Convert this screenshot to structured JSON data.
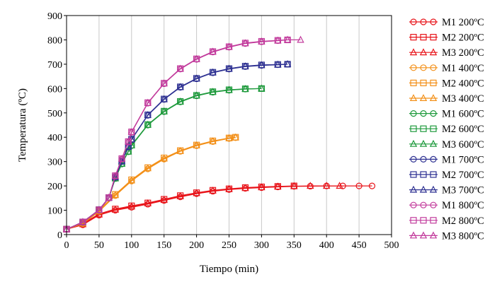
{
  "chart_data": {
    "type": "line",
    "title": "",
    "xlabel": "Tiempo (min)",
    "ylabel": "Temperatura (ºC)",
    "xlim": [
      0,
      500
    ],
    "ylim": [
      0,
      900
    ],
    "xticks": [
      0,
      50,
      100,
      150,
      200,
      250,
      300,
      350,
      400,
      450,
      500
    ],
    "yticks": [
      0,
      100,
      200,
      300,
      400,
      500,
      600,
      700,
      800,
      900
    ],
    "grid": "vertical",
    "legend_position": "right",
    "series": [
      {
        "name": "M1 200ºC",
        "color": "#e8141a",
        "marker": "circle",
        "x": [
          0,
          25,
          50,
          75,
          100,
          125,
          150,
          175,
          200,
          225,
          250,
          275,
          300,
          325,
          350,
          375,
          400,
          425,
          450,
          470
        ],
        "y": [
          22,
          40,
          80,
          100,
          112,
          125,
          140,
          155,
          168,
          178,
          185,
          190,
          193,
          196,
          198,
          199,
          200,
          200,
          200,
          200
        ]
      },
      {
        "name": "M2 200ºC",
        "color": "#e8141a",
        "marker": "square",
        "x": [
          0,
          25,
          50,
          75,
          100,
          125,
          150,
          175,
          200,
          225,
          250,
          275,
          300,
          325,
          350
        ],
        "y": [
          22,
          45,
          85,
          105,
          118,
          130,
          145,
          160,
          172,
          182,
          188,
          193,
          196,
          198,
          200
        ]
      },
      {
        "name": "M3 200ºC",
        "color": "#e8141a",
        "marker": "triangle",
        "x": [
          0,
          25,
          50,
          75,
          100,
          125,
          150,
          175,
          200,
          225,
          250,
          275,
          300,
          325,
          350,
          375,
          400,
          420
        ],
        "y": [
          22,
          42,
          82,
          102,
          115,
          128,
          142,
          157,
          170,
          180,
          187,
          191,
          194,
          197,
          199,
          200,
          200,
          200
        ]
      },
      {
        "name": "M1 400ºC",
        "color": "#f39019",
        "marker": "circle",
        "x": [
          0,
          25,
          50,
          75,
          100,
          125,
          150,
          175,
          200,
          225,
          250,
          260
        ],
        "y": [
          22,
          45,
          95,
          160,
          220,
          270,
          310,
          342,
          365,
          382,
          395,
          398
        ]
      },
      {
        "name": "M2 400ºC",
        "color": "#f39019",
        "marker": "square",
        "x": [
          0,
          25,
          50,
          75,
          100,
          125,
          150,
          175,
          200,
          225,
          250,
          260
        ],
        "y": [
          22,
          48,
          100,
          165,
          225,
          275,
          315,
          345,
          368,
          385,
          397,
          400
        ]
      },
      {
        "name": "M3 400ºC",
        "color": "#f39019",
        "marker": "triangle",
        "x": [
          0,
          25,
          50,
          75,
          100,
          125,
          150,
          175,
          200,
          225,
          250,
          260
        ],
        "y": [
          22,
          46,
          98,
          162,
          222,
          272,
          312,
          343,
          366,
          383,
          396,
          399
        ]
      },
      {
        "name": "M1 600ºC",
        "color": "#1e9a3c",
        "marker": "circle",
        "x": [
          0,
          25,
          50,
          65,
          75,
          85,
          95,
          100,
          125,
          150,
          175,
          200,
          225,
          250,
          275,
          300
        ],
        "y": [
          22,
          50,
          100,
          150,
          230,
          290,
          340,
          365,
          450,
          505,
          545,
          570,
          585,
          593,
          598,
          600
        ]
      },
      {
        "name": "M2 600ºC",
        "color": "#1e9a3c",
        "marker": "square",
        "x": [
          0,
          25,
          50,
          65,
          75,
          85,
          95,
          100,
          125,
          150,
          175,
          200,
          225,
          250,
          275,
          300
        ],
        "y": [
          22,
          52,
          102,
          152,
          232,
          292,
          342,
          368,
          452,
          507,
          547,
          572,
          587,
          595,
          599,
          600
        ]
      },
      {
        "name": "M3 600ºC",
        "color": "#1e9a3c",
        "marker": "triangle",
        "x": [
          0,
          25,
          50,
          65,
          75,
          85,
          95,
          100,
          125,
          150,
          175,
          200,
          225,
          250,
          275,
          300
        ],
        "y": [
          22,
          51,
          101,
          151,
          231,
          291,
          341,
          366,
          451,
          506,
          546,
          571,
          586,
          594,
          598,
          600
        ]
      },
      {
        "name": "M1 700ºC",
        "color": "#2e3192",
        "marker": "circle",
        "x": [
          0,
          25,
          50,
          65,
          75,
          85,
          95,
          100,
          125,
          150,
          175,
          200,
          225,
          250,
          275,
          300,
          325,
          340
        ],
        "y": [
          22,
          50,
          100,
          150,
          235,
          300,
          360,
          390,
          490,
          555,
          605,
          640,
          665,
          680,
          690,
          695,
          698,
          700
        ]
      },
      {
        "name": "M2 700ºC",
        "color": "#2e3192",
        "marker": "square",
        "x": [
          0,
          25,
          50,
          65,
          75,
          85,
          95,
          100,
          125,
          150,
          175,
          200,
          225,
          250,
          275,
          300,
          325,
          340
        ],
        "y": [
          22,
          52,
          102,
          152,
          237,
          302,
          362,
          392,
          492,
          557,
          607,
          642,
          667,
          682,
          692,
          697,
          699,
          700
        ]
      },
      {
        "name": "M3 700ºC",
        "color": "#2e3192",
        "marker": "triangle",
        "x": [
          0,
          25,
          50,
          65,
          75,
          85,
          95,
          100,
          125,
          150,
          175,
          200,
          225,
          250,
          275,
          300,
          325,
          340
        ],
        "y": [
          22,
          51,
          101,
          151,
          236,
          301,
          361,
          391,
          491,
          556,
          606,
          641,
          666,
          681,
          691,
          696,
          698,
          700
        ]
      },
      {
        "name": "M1 800ºC",
        "color": "#c23b9c",
        "marker": "circle",
        "x": [
          0,
          25,
          50,
          65,
          75,
          85,
          95,
          100,
          125,
          150,
          175,
          200,
          225,
          250,
          275,
          300,
          325,
          340
        ],
        "y": [
          22,
          50,
          100,
          150,
          240,
          310,
          380,
          420,
          540,
          620,
          680,
          720,
          750,
          770,
          785,
          792,
          797,
          800
        ]
      },
      {
        "name": "M2 800ºC",
        "color": "#c23b9c",
        "marker": "square",
        "x": [
          0,
          25,
          50,
          65,
          75,
          85,
          95,
          100,
          125,
          150,
          175,
          200,
          225,
          250,
          275,
          300,
          325,
          340
        ],
        "y": [
          22,
          52,
          102,
          152,
          242,
          312,
          382,
          422,
          542,
          622,
          682,
          722,
          752,
          772,
          787,
          794,
          798,
          800
        ]
      },
      {
        "name": "M3 800ºC",
        "color": "#c23b9c",
        "marker": "triangle",
        "x": [
          0,
          25,
          50,
          65,
          75,
          85,
          95,
          100,
          125,
          150,
          175,
          200,
          225,
          250,
          275,
          300,
          325,
          340,
          360
        ],
        "y": [
          22,
          51,
          101,
          151,
          241,
          311,
          381,
          421,
          541,
          621,
          681,
          721,
          751,
          771,
          786,
          793,
          797,
          800,
          800
        ]
      }
    ]
  }
}
